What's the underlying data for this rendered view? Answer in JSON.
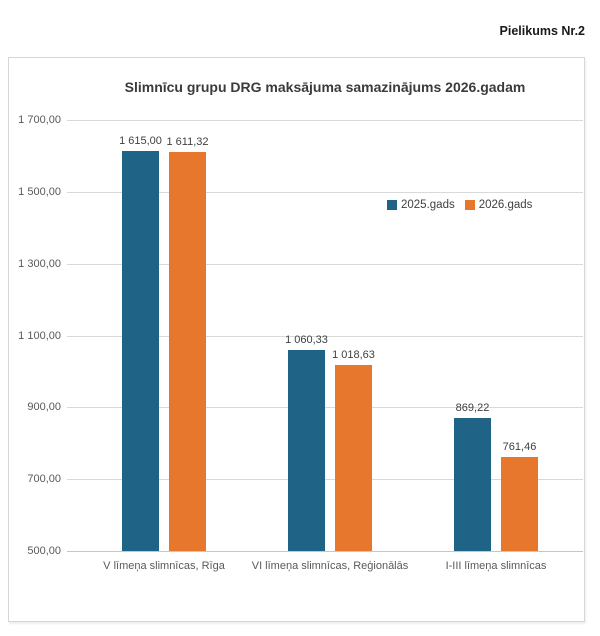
{
  "page": {
    "note": "Pielikums Nr.2"
  },
  "chart_data": {
    "type": "bar",
    "title": "Slimnīcu grupu DRG maksājuma samazinājums 2026.gadam",
    "categories": [
      "V līmeņa slimnīcas, Rīga",
      "VI līmeņa slimnīcas, Reģionālās",
      "I-III līmeņa slimnīcas"
    ],
    "series": [
      {
        "name": "2025.gads",
        "color": "#1F6386",
        "values": [
          1615.0,
          1060.33,
          869.22
        ]
      },
      {
        "name": "2026.gads",
        "color": "#E8772E",
        "values": [
          1611.32,
          1018.63,
          761.46
        ]
      }
    ],
    "xlabel": "",
    "ylabel": "",
    "ylim": [
      500,
      1700
    ],
    "ytick_step": 200,
    "grid": true,
    "legend_position": "right-middle",
    "number_format": "space-thousands-comma-decimals",
    "value_labels_shown": true
  }
}
